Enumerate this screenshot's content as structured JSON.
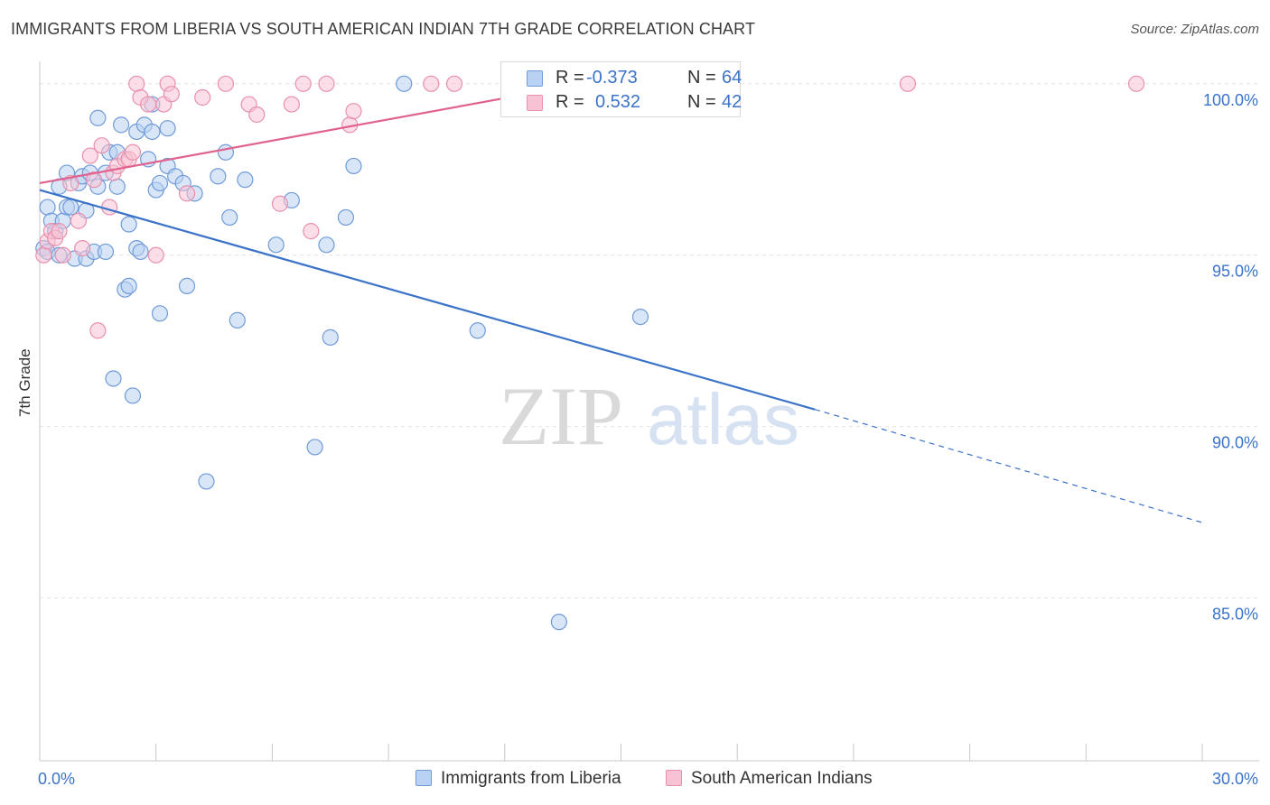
{
  "title": "IMMIGRANTS FROM LIBERIA VS SOUTH AMERICAN INDIAN 7TH GRADE CORRELATION CHART",
  "source": "Source: ZipAtlas.com",
  "watermark": {
    "part1": "ZIP",
    "part2": "atlas"
  },
  "colors": {
    "blue": "#3b73c8",
    "blue_fill": "#b9d1f3",
    "blue_edge": "#6f9bd8",
    "pink": "#e0628e",
    "pink_fill": "#f7c2d3",
    "pink_edge": "#e890ae",
    "grid": "#e2e2e2",
    "axis_text": "#3b73c8"
  },
  "legend_stats": [
    {
      "r_label": "R =",
      "r_value": "-0.373",
      "n_label": "N =",
      "n_value": "64"
    },
    {
      "r_label": "R =",
      "r_value": "0.532",
      "n_label": "N =",
      "n_value": "42"
    }
  ],
  "bottom_legend": [
    "Immigrants from Liberia",
    "South American Indians"
  ],
  "chart_data": {
    "type": "scatter",
    "title": "IMMIGRANTS FROM LIBERIA VS SOUTH AMERICAN INDIAN 7TH GRADE CORRELATION CHART",
    "xlabel": "",
    "ylabel": "7th Grade",
    "xlim": [
      0,
      30
    ],
    "ylim": [
      80.25,
      100.6
    ],
    "x_tick_labels": [
      "0.0%",
      "30.0%"
    ],
    "y_ticks": [
      85,
      90,
      95,
      100
    ],
    "y_tick_labels": [
      "85.0%",
      "90.0%",
      "95.0%",
      "100.0%"
    ],
    "series": [
      {
        "name": "Immigrants from Liberia",
        "color": "blue",
        "R": -0.373,
        "N": 64,
        "trend": {
          "x0": 0,
          "y0": 96.9,
          "x1": 20.0,
          "y1": 90.5,
          "dashed_to_x": 30.0,
          "dashed_to_y": 87.2
        },
        "points": [
          [
            0.1,
            95.2
          ],
          [
            0.2,
            95.1
          ],
          [
            0.2,
            96.4
          ],
          [
            0.3,
            96.0
          ],
          [
            0.4,
            95.7
          ],
          [
            0.5,
            97.0
          ],
          [
            0.5,
            95.0
          ],
          [
            0.6,
            96.0
          ],
          [
            0.7,
            96.4
          ],
          [
            0.7,
            97.4
          ],
          [
            0.8,
            96.4
          ],
          [
            0.9,
            94.9
          ],
          [
            1.0,
            97.1
          ],
          [
            1.1,
            97.3
          ],
          [
            1.2,
            96.3
          ],
          [
            1.2,
            94.9
          ],
          [
            1.3,
            97.4
          ],
          [
            1.4,
            95.1
          ],
          [
            1.5,
            97.0
          ],
          [
            1.5,
            99.0
          ],
          [
            1.7,
            97.4
          ],
          [
            1.7,
            95.1
          ],
          [
            1.8,
            98.0
          ],
          [
            1.9,
            91.4
          ],
          [
            2.0,
            98.0
          ],
          [
            2.0,
            97.0
          ],
          [
            2.1,
            98.8
          ],
          [
            2.2,
            94.0
          ],
          [
            2.3,
            94.1
          ],
          [
            2.3,
            95.9
          ],
          [
            2.4,
            90.9
          ],
          [
            2.5,
            95.2
          ],
          [
            2.5,
            98.6
          ],
          [
            2.6,
            95.1
          ],
          [
            2.7,
            98.8
          ],
          [
            2.8,
            97.8
          ],
          [
            2.9,
            98.6
          ],
          [
            2.9,
            99.4
          ],
          [
            3.0,
            96.9
          ],
          [
            3.1,
            93.3
          ],
          [
            3.1,
            97.1
          ],
          [
            3.3,
            97.6
          ],
          [
            3.3,
            98.7
          ],
          [
            3.5,
            97.3
          ],
          [
            3.7,
            97.1
          ],
          [
            3.8,
            94.1
          ],
          [
            4.0,
            96.8
          ],
          [
            4.3,
            88.4
          ],
          [
            4.6,
            97.3
          ],
          [
            4.8,
            98.0
          ],
          [
            4.9,
            96.1
          ],
          [
            5.1,
            93.1
          ],
          [
            5.3,
            97.2
          ],
          [
            6.1,
            95.3
          ],
          [
            6.5,
            96.6
          ],
          [
            7.1,
            89.4
          ],
          [
            7.4,
            95.3
          ],
          [
            7.5,
            92.6
          ],
          [
            7.9,
            96.1
          ],
          [
            8.1,
            97.6
          ],
          [
            9.4,
            100.0
          ],
          [
            11.3,
            92.8
          ],
          [
            13.4,
            84.3
          ],
          [
            15.5,
            93.2
          ]
        ]
      },
      {
        "name": "South American Indians",
        "color": "pink",
        "R": 0.532,
        "N": 42,
        "trend": {
          "x0": 0,
          "y0": 97.1,
          "x1": 15.0,
          "y1": 100.2
        },
        "points": [
          [
            0.1,
            95.0
          ],
          [
            0.2,
            95.4
          ],
          [
            0.3,
            95.7
          ],
          [
            0.4,
            95.5
          ],
          [
            0.5,
            95.7
          ],
          [
            0.6,
            95.0
          ],
          [
            0.8,
            97.1
          ],
          [
            1.0,
            96.0
          ],
          [
            1.1,
            95.2
          ],
          [
            1.3,
            97.9
          ],
          [
            1.4,
            97.2
          ],
          [
            1.5,
            92.8
          ],
          [
            1.6,
            98.2
          ],
          [
            1.8,
            96.4
          ],
          [
            1.9,
            97.4
          ],
          [
            2.0,
            97.6
          ],
          [
            2.2,
            97.8
          ],
          [
            2.3,
            97.8
          ],
          [
            2.4,
            98.0
          ],
          [
            2.5,
            100.0
          ],
          [
            2.6,
            99.6
          ],
          [
            2.8,
            99.4
          ],
          [
            3.0,
            95.0
          ],
          [
            3.2,
            99.4
          ],
          [
            3.3,
            100.0
          ],
          [
            3.4,
            99.7
          ],
          [
            3.8,
            96.8
          ],
          [
            4.2,
            99.6
          ],
          [
            4.8,
            100.0
          ],
          [
            5.4,
            99.4
          ],
          [
            5.6,
            99.1
          ],
          [
            6.2,
            96.5
          ],
          [
            6.5,
            99.4
          ],
          [
            6.8,
            100.0
          ],
          [
            7.0,
            95.7
          ],
          [
            7.4,
            100.0
          ],
          [
            8.0,
            98.8
          ],
          [
            8.1,
            99.2
          ],
          [
            10.1,
            100.0
          ],
          [
            10.7,
            100.0
          ],
          [
            22.4,
            100.0
          ],
          [
            28.3,
            100.0
          ]
        ]
      }
    ]
  }
}
